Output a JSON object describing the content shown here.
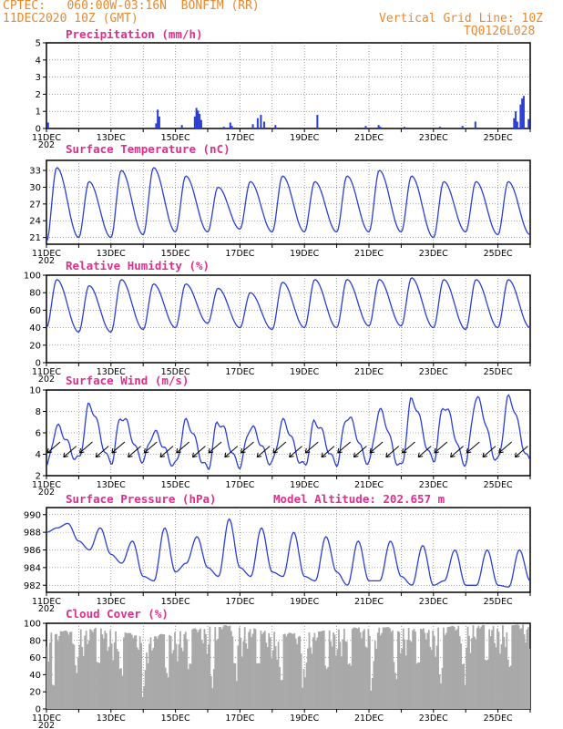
{
  "header": {
    "line1_left": "CPTEC:   060:00W-03:16N  BONFIM (RR)",
    "line2_left": "11DEC2020 10Z (GMT)",
    "line1_right": "Vertical Grid Line: 10Z",
    "line2_right": "TQ0126L028",
    "color": "#e8892e"
  },
  "x_axis": {
    "tick_labels": [
      "11DEC",
      "13DEC",
      "15DEC",
      "17DEC",
      "19DEC",
      "21DEC",
      "23DEC",
      "25DEC"
    ],
    "year_fragment": "202",
    "days_span": 15
  },
  "colors": {
    "line": "#2a3fd6",
    "title": "#e22d8f",
    "cloud": "#a9a9a9",
    "arrow": "#000000"
  },
  "chart_data": [
    {
      "id": "precipitation",
      "type": "bar",
      "title": "Precipitation (mm/h)",
      "ylim": [
        0,
        5
      ],
      "yticks": [
        0,
        1,
        2,
        3,
        4,
        5
      ],
      "x_unit": "days since 11DEC2020 10Z",
      "bars": [
        [
          0.05,
          0.35
        ],
        [
          3.4,
          0.3
        ],
        [
          3.45,
          1.1
        ],
        [
          3.5,
          0.7
        ],
        [
          4.2,
          0.2
        ],
        [
          4.6,
          0.7
        ],
        [
          4.65,
          1.2
        ],
        [
          4.7,
          1.05
        ],
        [
          4.75,
          0.85
        ],
        [
          4.8,
          0.5
        ],
        [
          5.5,
          0.1
        ],
        [
          5.7,
          0.35
        ],
        [
          5.75,
          0.15
        ],
        [
          6.4,
          0.25
        ],
        [
          6.55,
          0.6
        ],
        [
          6.65,
          0.8
        ],
        [
          6.75,
          0.4
        ],
        [
          7.1,
          0.2
        ],
        [
          8.4,
          0.8
        ],
        [
          9.9,
          0.15
        ],
        [
          10.3,
          0.2
        ],
        [
          10.35,
          0.1
        ],
        [
          11.1,
          0.1
        ],
        [
          12.2,
          0.1
        ],
        [
          12.9,
          0.15
        ],
        [
          13.3,
          0.4
        ],
        [
          14.5,
          0.6
        ],
        [
          14.55,
          1.0
        ],
        [
          14.6,
          0.4
        ],
        [
          14.7,
          1.4
        ],
        [
          14.75,
          1.75
        ],
        [
          14.8,
          1.9
        ],
        [
          14.95,
          0.55
        ]
      ]
    },
    {
      "id": "temperature",
      "type": "line",
      "title": "Surface Temperature (nC)",
      "ylim": [
        19.8,
        34.8
      ],
      "yticks": [
        21,
        24,
        27,
        30,
        33
      ],
      "x_unit": "days since 11DEC2020 10Z",
      "max_peaks": [
        33.5,
        31.0,
        33.0,
        33.5,
        32.0,
        30.0,
        31.0,
        32.0,
        31.0,
        32.0,
        33.0,
        32.0,
        31.0,
        31.0,
        31.0
      ],
      "min_troughs": [
        20.2,
        21.0,
        21.0,
        21.5,
        22.0,
        22.0,
        22.5,
        22.0,
        22.0,
        22.0,
        22.0,
        22.0,
        21.0,
        22.0,
        21.5
      ]
    },
    {
      "id": "humidity",
      "type": "line",
      "title": "Relative Humidity (%)",
      "ylim": [
        0,
        100
      ],
      "yticks": [
        0,
        20,
        40,
        60,
        80,
        100
      ],
      "x_unit": "days since 11DEC2020 10Z",
      "max_peaks": [
        95,
        88,
        95,
        90,
        90,
        85,
        80,
        92,
        95,
        95,
        95,
        97,
        95,
        95,
        95
      ],
      "min_troughs": [
        40,
        35,
        35,
        38,
        40,
        45,
        40,
        38,
        40,
        40,
        42,
        42,
        40,
        38,
        40
      ]
    },
    {
      "id": "wind",
      "type": "line",
      "title": "Surface Wind (m/s)",
      "ylim": [
        2,
        10
      ],
      "yticks": [
        2,
        4,
        6,
        8,
        10
      ],
      "x_unit": "days since 11DEC2020 10Z",
      "max_peaks": [
        6.5,
        8.5,
        7.5,
        6.0,
        7.0,
        7.0,
        6.5,
        7.0,
        7.0,
        7.5,
        8.0,
        9.0,
        8.5,
        9.2,
        9.2
      ],
      "min_troughs": [
        2.8,
        3.5,
        3.3,
        3.5,
        3.0,
        2.7,
        3.0,
        3.2,
        2.9,
        3.2,
        3.3,
        2.8,
        3.5,
        3.2,
        3.4
      ],
      "arrows_dir_deg": 225
    },
    {
      "id": "pressure",
      "type": "line",
      "title": "Surface Pressure (hPa)",
      "extra_label": "Model Altitude: 202.657 m",
      "ylim": [
        981.2,
        990.8
      ],
      "yticks": [
        982,
        984,
        986,
        988,
        990
      ],
      "x_unit": "days since 11DEC2020 10Z",
      "series": [
        988,
        988.5,
        989.0,
        987.0,
        986.0,
        988.5,
        985.5,
        984.5,
        987.0,
        983.0,
        982.5,
        988.5,
        983.5,
        984.5,
        987.5,
        984.0,
        983.0,
        989.5,
        984.0,
        983.0,
        988.5,
        983.5,
        983.0,
        988.0,
        983.0,
        982.5,
        987.5,
        983.5,
        982.0,
        987.0,
        982.5,
        982.5,
        987.0,
        983.0,
        982.0,
        986.5,
        982.0,
        982.5,
        986.0,
        982.0,
        982.0,
        986.0,
        982.0,
        981.8,
        986.0,
        982.5
      ]
    },
    {
      "id": "cloud",
      "type": "area",
      "title": "Cloud Cover (%)",
      "ylim": [
        0,
        100
      ],
      "yticks": [
        0,
        20,
        40,
        60,
        80,
        100
      ],
      "x_unit": "days since 11DEC2020 10Z",
      "envelope": [
        90,
        92,
        95,
        90,
        85,
        90,
        95,
        98,
        95,
        90,
        88,
        92,
        95,
        96,
        95,
        94,
        97,
        98,
        98,
        99
      ]
    }
  ]
}
